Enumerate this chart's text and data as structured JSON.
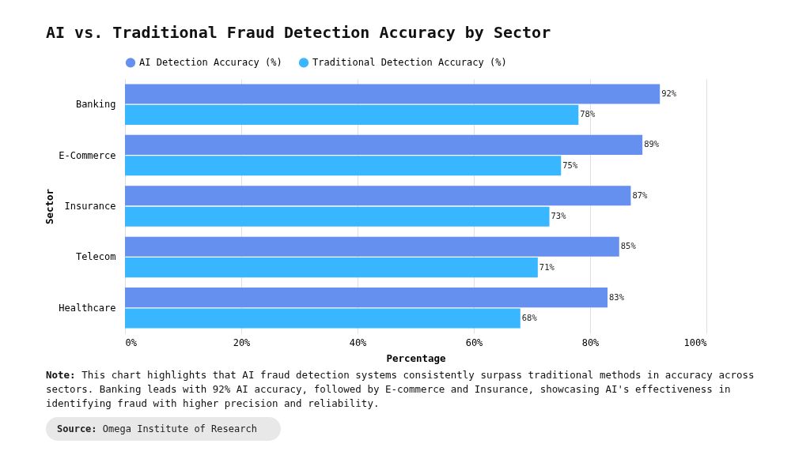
{
  "chart_data": {
    "type": "bar",
    "orientation": "horizontal",
    "title": "AI vs. Traditional Fraud Detection Accuracy by Sector",
    "xlabel": "Percentage",
    "ylabel": "Sector",
    "categories": [
      "Banking",
      "E-Commerce",
      "Insurance",
      "Telecom",
      "Healthcare"
    ],
    "series": [
      {
        "name": "AI Detection Accuracy (%)",
        "color": "#6590f0",
        "values": [
          92,
          89,
          87,
          85,
          83
        ],
        "value_labels": [
          "92%",
          "89%",
          "87%",
          "85%",
          "83%"
        ]
      },
      {
        "name": "Traditional Detection Accuracy (%)",
        "color": "#38b6ff",
        "values": [
          78,
          75,
          73,
          71,
          68
        ],
        "value_labels": [
          "78%",
          "75%",
          "73%",
          "71%",
          "68%"
        ]
      }
    ],
    "xlim": [
      0,
      100
    ],
    "xticks": [
      {
        "value": 0,
        "label": "0%"
      },
      {
        "value": 20,
        "label": "20%"
      },
      {
        "value": 40,
        "label": "40%"
      },
      {
        "value": 60,
        "label": "60%"
      },
      {
        "value": 80,
        "label": "80%"
      },
      {
        "value": 100,
        "label": "100%"
      }
    ],
    "grid": "x",
    "legend": "top",
    "annotations": [
      "Note: This chart highlights that AI fraud detection systems consistently surpass traditional methods in accuracy across sectors. Banking leads with 92% AI accuracy, followed by E-commerce and Insurance, showcasing AI's effectiveness in identifying fraud with higher precision and reliability.",
      "Source: Omega Institute of Research"
    ]
  }
}
